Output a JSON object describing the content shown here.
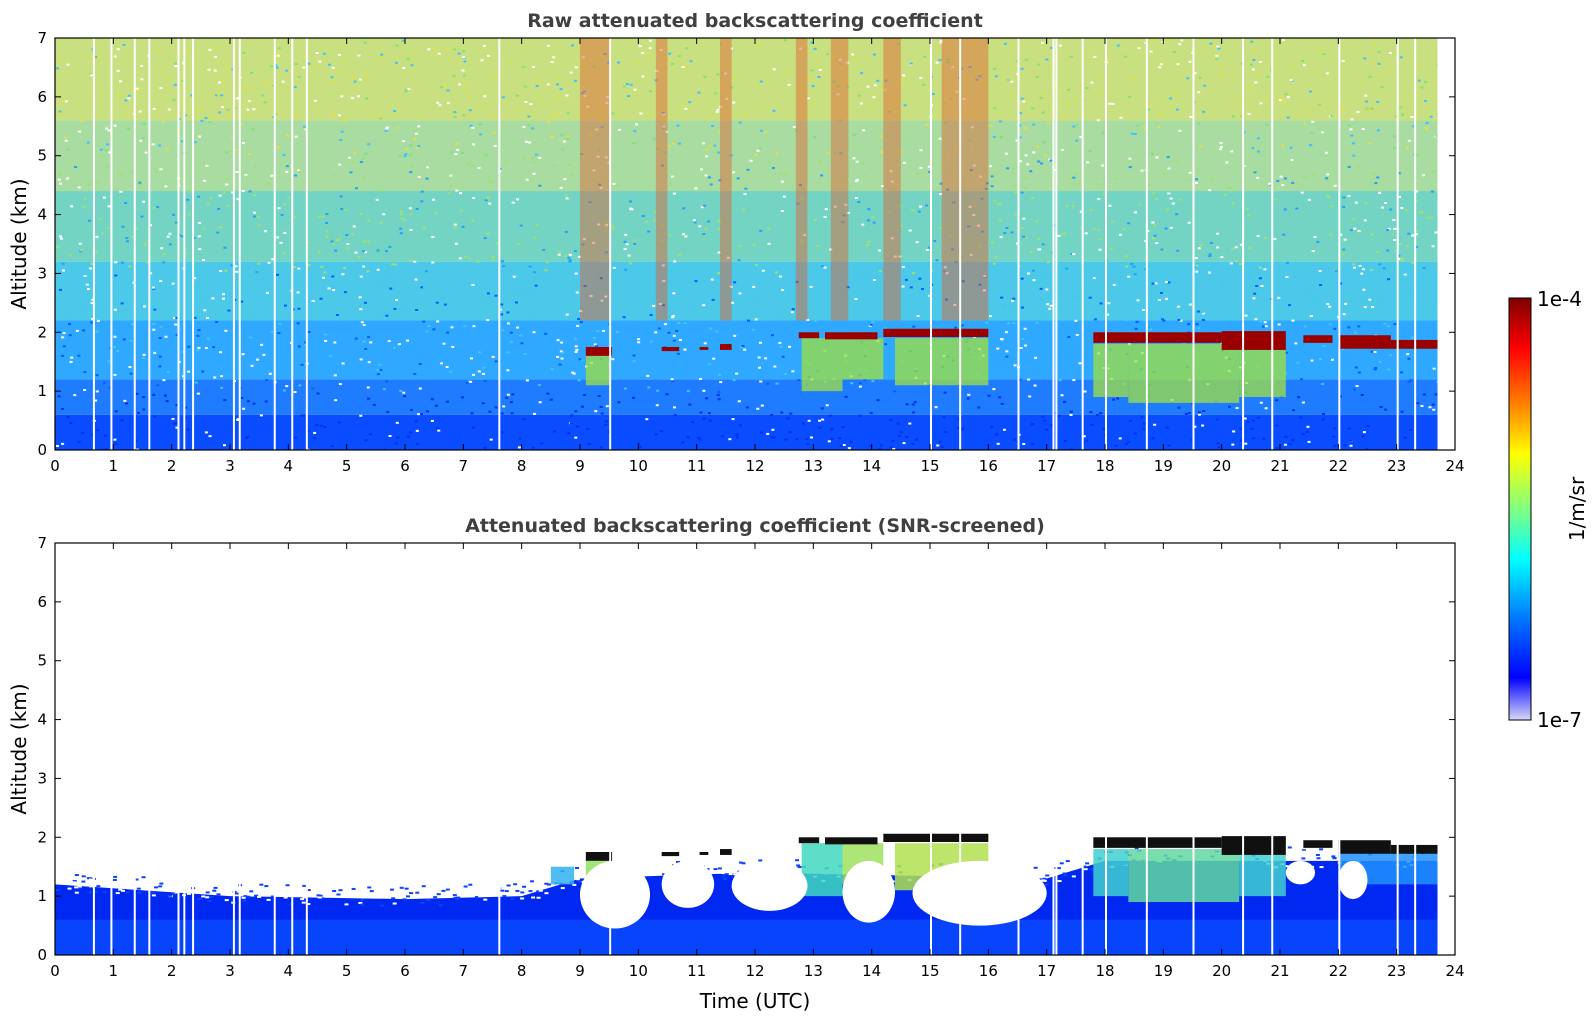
{
  "chart_data": [
    {
      "type": "heatmap",
      "title": "Raw attenuated backscattering coefficient",
      "xlabel": "",
      "ylabel": "Altitude (km)",
      "xlim": [
        0,
        24
      ],
      "ylim": [
        0,
        7
      ],
      "xticks": [
        "0",
        "1",
        "2",
        "3",
        "4",
        "5",
        "6",
        "7",
        "8",
        "9",
        "10",
        "11",
        "12",
        "13",
        "14",
        "15",
        "16",
        "17",
        "18",
        "19",
        "20",
        "21",
        "22",
        "23",
        "24"
      ],
      "yticks": [
        "0",
        "1",
        "2",
        "3",
        "4",
        "5",
        "6",
        "7"
      ],
      "data_end_hour": 23.7,
      "gaps": [
        0.65,
        0.95,
        1.35,
        1.6,
        2.1,
        2.2,
        2.35,
        3.05,
        3.15,
        3.75,
        4.05,
        4.3,
        7.6,
        9.5,
        15.0,
        15.5,
        16.5,
        17.1,
        17.15,
        17.6,
        18.0,
        18.7,
        19.5,
        20.35,
        20.85,
        22.0,
        23.0,
        23.3
      ],
      "cloud_layers": [
        {
          "start": 9.1,
          "end": 9.55,
          "top_km": 1.75,
          "base_km": 1.6
        },
        {
          "start": 10.4,
          "end": 10.7,
          "top_km": 1.75,
          "base_km": 1.68
        },
        {
          "start": 11.05,
          "end": 11.2,
          "top_km": 1.75,
          "base_km": 1.7
        },
        {
          "start": 11.4,
          "end": 11.6,
          "top_km": 1.8,
          "base_km": 1.7
        },
        {
          "start": 12.75,
          "end": 13.1,
          "top_km": 2.0,
          "base_km": 1.9
        },
        {
          "start": 13.2,
          "end": 14.1,
          "top_km": 2.0,
          "base_km": 1.88
        },
        {
          "start": 14.2,
          "end": 16.0,
          "top_km": 2.06,
          "base_km": 1.92
        },
        {
          "start": 17.8,
          "end": 20.0,
          "top_km": 2.0,
          "base_km": 1.82
        },
        {
          "start": 20.0,
          "end": 21.1,
          "top_km": 2.02,
          "base_km": 1.7
        },
        {
          "start": 21.4,
          "end": 21.9,
          "top_km": 1.95,
          "base_km": 1.82
        },
        {
          "start": 22.0,
          "end": 22.9,
          "top_km": 1.95,
          "base_km": 1.72
        },
        {
          "start": 22.9,
          "end": 23.7,
          "top_km": 1.87,
          "base_km": 1.72
        }
      ]
    },
    {
      "type": "heatmap",
      "title": "Attenuated backscattering coefficient (SNR-screened)",
      "xlabel": "Time (UTC)",
      "ylabel": "Altitude (km)",
      "xlim": [
        0,
        24
      ],
      "ylim": [
        0,
        7
      ],
      "xticks": [
        "0",
        "1",
        "2",
        "3",
        "4",
        "5",
        "6",
        "7",
        "8",
        "9",
        "10",
        "11",
        "12",
        "13",
        "14",
        "15",
        "16",
        "17",
        "18",
        "19",
        "20",
        "21",
        "22",
        "23",
        "24"
      ],
      "yticks": [
        "0",
        "1",
        "2",
        "3",
        "4",
        "5",
        "6",
        "7"
      ],
      "aerosol_top_km": [
        [
          0,
          1.2
        ],
        [
          3,
          1.0
        ],
        [
          6,
          0.95
        ],
        [
          8,
          1.0
        ],
        [
          9,
          1.3
        ],
        [
          12,
          1.4
        ],
        [
          17,
          1.3
        ],
        [
          18,
          1.6
        ],
        [
          23.7,
          1.6
        ]
      ],
      "clear_pockets": [
        {
          "start": 9.0,
          "end": 10.2,
          "bottom_km": 0.45
        },
        {
          "start": 10.4,
          "end": 11.3,
          "bottom_km": 0.8
        },
        {
          "start": 11.6,
          "end": 12.9,
          "bottom_km": 0.75
        },
        {
          "start": 13.5,
          "end": 14.4,
          "bottom_km": 0.55
        },
        {
          "start": 14.7,
          "end": 17.0,
          "bottom_km": 0.5
        },
        {
          "start": 21.1,
          "end": 21.6,
          "bottom_km": 1.2
        },
        {
          "start": 22.0,
          "end": 22.5,
          "bottom_km": 0.95
        }
      ]
    }
  ],
  "colorbar": {
    "label": "1/m/sr",
    "max_label": "1e-4",
    "min_label": "1e-7",
    "colors": [
      "#7f0000",
      "#ff0000",
      "#ff8000",
      "#ffff00",
      "#80ff80",
      "#00ffff",
      "#0080ff",
      "#0000ff",
      "#d8d8f8"
    ]
  }
}
